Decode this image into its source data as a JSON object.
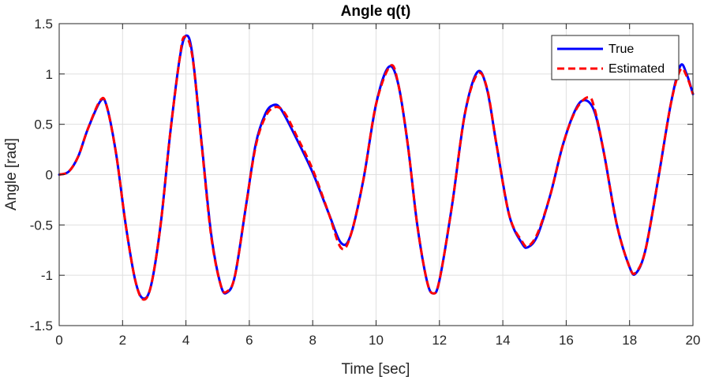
{
  "chart_data": {
    "type": "line",
    "title": "Angle q(t)",
    "xlabel": "Time [sec]",
    "ylabel": "Angle [rad]",
    "xlim": [
      0,
      20
    ],
    "ylim": [
      -1.5,
      1.5
    ],
    "xticks": [
      0,
      2,
      4,
      6,
      8,
      10,
      12,
      14,
      16,
      18,
      20
    ],
    "yticks": [
      -1.5,
      -1,
      -0.5,
      0,
      0.5,
      1,
      1.5
    ],
    "xtick_labels": [
      "0",
      "2",
      "4",
      "6",
      "8",
      "10",
      "12",
      "14",
      "16",
      "18",
      "20"
    ],
    "ytick_labels": [
      "-1.5",
      "-1",
      "-0.5",
      "0",
      "0.5",
      "1",
      "1.5"
    ],
    "grid": true,
    "legend_position": "top-right",
    "series": [
      {
        "name": "True",
        "color": "#0000ff",
        "style": "solid",
        "points": [
          [
            0,
            0
          ],
          [
            0.3,
            0.03
          ],
          [
            0.6,
            0.18
          ],
          [
            0.9,
            0.45
          ],
          [
            1.3,
            0.73
          ],
          [
            1.5,
            0.68
          ],
          [
            1.8,
            0.2
          ],
          [
            2.1,
            -0.5
          ],
          [
            2.4,
            -1.05
          ],
          [
            2.65,
            -1.23
          ],
          [
            2.9,
            -1.1
          ],
          [
            3.2,
            -0.5
          ],
          [
            3.5,
            0.4
          ],
          [
            3.8,
            1.15
          ],
          [
            4.0,
            1.38
          ],
          [
            4.2,
            1.2
          ],
          [
            4.5,
            0.3
          ],
          [
            4.8,
            -0.6
          ],
          [
            5.1,
            -1.1
          ],
          [
            5.3,
            -1.17
          ],
          [
            5.55,
            -1.0
          ],
          [
            5.9,
            -0.3
          ],
          [
            6.2,
            0.3
          ],
          [
            6.5,
            0.6
          ],
          [
            6.75,
            0.69
          ],
          [
            7.0,
            0.65
          ],
          [
            7.5,
            0.35
          ],
          [
            8.0,
            0.02
          ],
          [
            8.5,
            -0.38
          ],
          [
            8.9,
            -0.68
          ],
          [
            9.2,
            -0.6
          ],
          [
            9.6,
            -0.05
          ],
          [
            10.0,
            0.7
          ],
          [
            10.4,
            1.07
          ],
          [
            10.7,
            0.9
          ],
          [
            11.0,
            0.3
          ],
          [
            11.3,
            -0.5
          ],
          [
            11.6,
            -1.05
          ],
          [
            11.8,
            -1.18
          ],
          [
            12.0,
            -1.05
          ],
          [
            12.4,
            -0.3
          ],
          [
            12.8,
            0.6
          ],
          [
            13.2,
            1.02
          ],
          [
            13.5,
            0.85
          ],
          [
            13.8,
            0.3
          ],
          [
            14.2,
            -0.4
          ],
          [
            14.6,
            -0.68
          ],
          [
            14.8,
            -0.72
          ],
          [
            15.1,
            -0.6
          ],
          [
            15.5,
            -0.2
          ],
          [
            15.9,
            0.3
          ],
          [
            16.3,
            0.65
          ],
          [
            16.6,
            0.74
          ],
          [
            16.9,
            0.62
          ],
          [
            17.2,
            0.2
          ],
          [
            17.6,
            -0.5
          ],
          [
            18.0,
            -0.92
          ],
          [
            18.2,
            -0.98
          ],
          [
            18.5,
            -0.75
          ],
          [
            18.9,
            -0.05
          ],
          [
            19.3,
            0.7
          ],
          [
            19.6,
            1.08
          ],
          [
            19.8,
            1.0
          ],
          [
            20.0,
            0.8
          ]
        ]
      },
      {
        "name": "Estimated",
        "color": "#ff0000",
        "style": "dashed",
        "points": [
          [
            0,
            0
          ],
          [
            0.3,
            0.03
          ],
          [
            0.6,
            0.18
          ],
          [
            0.9,
            0.45
          ],
          [
            1.3,
            0.74
          ],
          [
            1.5,
            0.68
          ],
          [
            1.8,
            0.2
          ],
          [
            2.1,
            -0.5
          ],
          [
            2.4,
            -1.05
          ],
          [
            2.65,
            -1.24
          ],
          [
            2.9,
            -1.1
          ],
          [
            3.2,
            -0.5
          ],
          [
            3.5,
            0.4
          ],
          [
            3.8,
            1.15
          ],
          [
            3.95,
            1.37
          ],
          [
            4.2,
            1.18
          ],
          [
            4.5,
            0.28
          ],
          [
            4.8,
            -0.62
          ],
          [
            5.1,
            -1.1
          ],
          [
            5.3,
            -1.16
          ],
          [
            5.55,
            -1.0
          ],
          [
            5.9,
            -0.3
          ],
          [
            6.2,
            0.28
          ],
          [
            6.5,
            0.57
          ],
          [
            6.8,
            0.67
          ],
          [
            7.1,
            0.62
          ],
          [
            7.5,
            0.38
          ],
          [
            8.0,
            0.05
          ],
          [
            8.5,
            -0.38
          ],
          [
            8.9,
            -0.73
          ],
          [
            9.2,
            -0.6
          ],
          [
            9.6,
            -0.05
          ],
          [
            10.0,
            0.7
          ],
          [
            10.45,
            1.08
          ],
          [
            10.7,
            0.9
          ],
          [
            11.0,
            0.3
          ],
          [
            11.3,
            -0.5
          ],
          [
            11.6,
            -1.05
          ],
          [
            11.8,
            -1.18
          ],
          [
            12.0,
            -1.05
          ],
          [
            12.4,
            -0.3
          ],
          [
            12.8,
            0.6
          ],
          [
            13.2,
            1.0
          ],
          [
            13.5,
            0.86
          ],
          [
            13.8,
            0.3
          ],
          [
            14.2,
            -0.4
          ],
          [
            14.6,
            -0.66
          ],
          [
            14.8,
            -0.71
          ],
          [
            15.1,
            -0.58
          ],
          [
            15.5,
            -0.2
          ],
          [
            15.9,
            0.3
          ],
          [
            16.3,
            0.64
          ],
          [
            16.7,
            0.77
          ],
          [
            16.9,
            0.65
          ],
          [
            17.2,
            0.2
          ],
          [
            17.6,
            -0.5
          ],
          [
            18.0,
            -0.92
          ],
          [
            18.2,
            -0.97
          ],
          [
            18.5,
            -0.75
          ],
          [
            18.9,
            -0.05
          ],
          [
            19.3,
            0.7
          ],
          [
            19.6,
            1.04
          ],
          [
            19.8,
            0.98
          ],
          [
            20.0,
            0.8
          ]
        ]
      }
    ]
  }
}
